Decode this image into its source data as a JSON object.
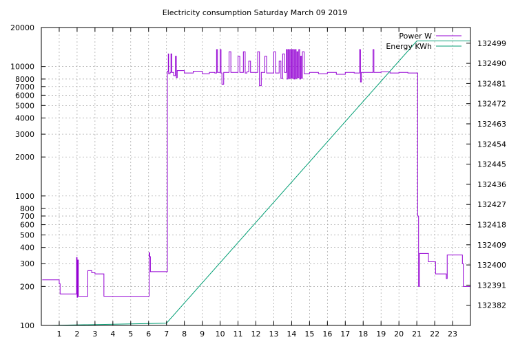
{
  "chart_data": {
    "type": "line",
    "title": "Electricity consumption Saturday March 09 2019",
    "xlabel": "",
    "ylabel": "",
    "y2label": "",
    "x_ticks": [
      1,
      2,
      3,
      4,
      5,
      6,
      7,
      8,
      9,
      10,
      11,
      12,
      13,
      14,
      15,
      16,
      17,
      18,
      19,
      20,
      21,
      22,
      23
    ],
    "xlim": [
      0,
      24
    ],
    "y_scale": "log",
    "ylim": [
      100,
      20000
    ],
    "y_ticks": [
      100,
      200,
      300,
      400,
      500,
      600,
      700,
      800,
      1000,
      2000,
      3000,
      4000,
      5000,
      6000,
      7000,
      8000,
      10000,
      20000
    ],
    "y2lim": [
      132373,
      132506
    ],
    "y2_ticks": [
      132382,
      132391,
      132400,
      132409,
      132418,
      132427,
      132436,
      132445,
      132454,
      132463,
      132472,
      132481,
      132490,
      132499
    ],
    "grid": true,
    "legend_position": "top-right",
    "series": [
      {
        "name": "Power W",
        "axis": "y1",
        "color": "#9400d3",
        "points": [
          [
            0.05,
            225
          ],
          [
            0.95,
            225
          ],
          [
            1.0,
            210
          ],
          [
            1.05,
            175
          ],
          [
            1.95,
            175
          ],
          [
            1.97,
            335
          ],
          [
            2.0,
            165
          ],
          [
            2.03,
            320
          ],
          [
            2.07,
            168
          ],
          [
            2.55,
            168
          ],
          [
            2.6,
            265
          ],
          [
            2.8,
            265
          ],
          [
            2.82,
            255
          ],
          [
            3.0,
            250
          ],
          [
            3.4,
            250
          ],
          [
            3.5,
            245
          ],
          [
            3.5,
            168
          ],
          [
            6.0,
            168
          ],
          [
            6.03,
            365
          ],
          [
            6.06,
            340
          ],
          [
            6.1,
            260
          ],
          [
            7.0,
            260
          ],
          [
            7.05,
            9200
          ],
          [
            7.1,
            12500
          ],
          [
            7.12,
            8800
          ],
          [
            7.2,
            9000
          ],
          [
            7.25,
            12500
          ],
          [
            7.3,
            9000
          ],
          [
            7.4,
            8500
          ],
          [
            7.5,
            12000
          ],
          [
            7.55,
            8200
          ],
          [
            7.6,
            9300
          ],
          [
            8.0,
            8900
          ],
          [
            8.5,
            9200
          ],
          [
            9.0,
            8800
          ],
          [
            9.4,
            9000
          ],
          [
            9.7,
            8900
          ],
          [
            9.8,
            13500
          ],
          [
            9.85,
            9000
          ],
          [
            10.0,
            13500
          ],
          [
            10.05,
            8900
          ],
          [
            10.1,
            7300
          ],
          [
            10.2,
            9000
          ],
          [
            10.5,
            13000
          ],
          [
            10.6,
            9000
          ],
          [
            11.0,
            12000
          ],
          [
            11.1,
            9000
          ],
          [
            11.3,
            13000
          ],
          [
            11.4,
            8900
          ],
          [
            11.5,
            9100
          ],
          [
            11.6,
            11000
          ],
          [
            11.7,
            9000
          ],
          [
            12.0,
            9000
          ],
          [
            12.1,
            13000
          ],
          [
            12.2,
            7100
          ],
          [
            12.3,
            9000
          ],
          [
            12.5,
            12000
          ],
          [
            12.6,
            8900
          ],
          [
            13.0,
            13000
          ],
          [
            13.1,
            8900
          ],
          [
            13.3,
            11000
          ],
          [
            13.4,
            8100
          ],
          [
            13.5,
            12500
          ],
          [
            13.6,
            9000
          ],
          [
            13.7,
            13500
          ],
          [
            13.75,
            8000
          ],
          [
            13.8,
            13500
          ],
          [
            13.85,
            8100
          ],
          [
            13.9,
            13500
          ],
          [
            13.95,
            8100
          ],
          [
            14.0,
            13500
          ],
          [
            14.05,
            8100
          ],
          [
            14.1,
            13500
          ],
          [
            14.15,
            8000
          ],
          [
            14.2,
            13500
          ],
          [
            14.25,
            8100
          ],
          [
            14.3,
            13000
          ],
          [
            14.35,
            8200
          ],
          [
            14.4,
            13500
          ],
          [
            14.45,
            8000
          ],
          [
            14.5,
            12000
          ],
          [
            14.55,
            8100
          ],
          [
            14.6,
            13000
          ],
          [
            14.7,
            8800
          ],
          [
            15.0,
            9000
          ],
          [
            15.5,
            8800
          ],
          [
            16.0,
            9000
          ],
          [
            16.5,
            8700
          ],
          [
            17.0,
            9000
          ],
          [
            17.5,
            8900
          ],
          [
            17.8,
            13500
          ],
          [
            17.85,
            7600
          ],
          [
            17.9,
            9000
          ],
          [
            18.5,
            9000
          ],
          [
            18.55,
            13500
          ],
          [
            18.6,
            9000
          ],
          [
            19.0,
            9100
          ],
          [
            19.5,
            8900
          ],
          [
            20.0,
            9000
          ],
          [
            20.5,
            8900
          ],
          [
            21.0,
            8900
          ],
          [
            21.05,
            700
          ],
          [
            21.1,
            200
          ],
          [
            21.15,
            360
          ],
          [
            21.6,
            360
          ],
          [
            21.65,
            310
          ],
          [
            22.0,
            310
          ],
          [
            22.05,
            250
          ],
          [
            22.6,
            250
          ],
          [
            22.65,
            230
          ],
          [
            22.7,
            350
          ],
          [
            23.5,
            350
          ],
          [
            23.55,
            300
          ],
          [
            23.6,
            200
          ],
          [
            24.0,
            200
          ]
        ]
      },
      {
        "name": "Energy KWh",
        "axis": "y2",
        "color": "#009e73",
        "points": [
          [
            0.5,
            132373
          ],
          [
            7.0,
            132374
          ],
          [
            21.0,
            132500
          ],
          [
            24.0,
            132500
          ]
        ]
      }
    ]
  }
}
